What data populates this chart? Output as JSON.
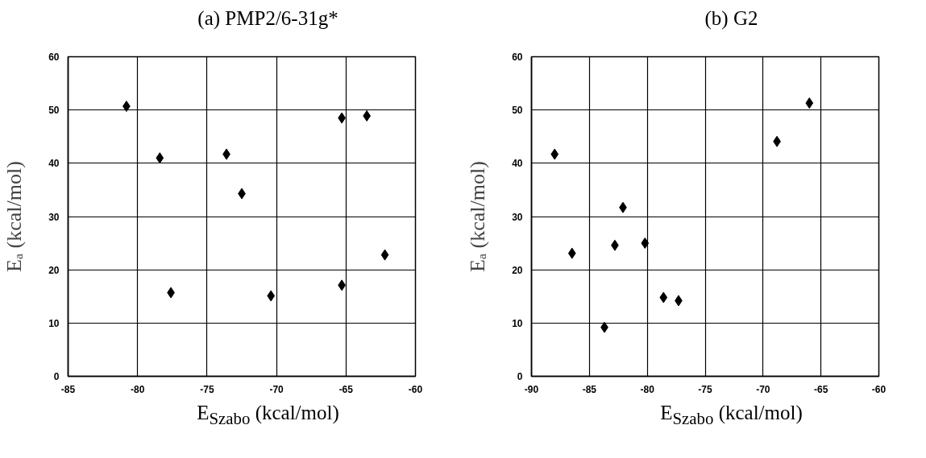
{
  "chart_data": [
    {
      "type": "scatter",
      "title": "(a) PMP2/6-31g*",
      "xlabel": "E$_{Szabo}$ (kcal/mol)",
      "ylabel": "Eₐ (kcal/mol)",
      "marker": "diamond",
      "color": "#000000",
      "grid": true,
      "x": [
        -80.8,
        -78.4,
        -77.6,
        -73.6,
        -72.5,
        -70.4,
        -65.3,
        -63.5,
        -65.3,
        -62.2
      ],
      "values": [
        50.7,
        41.0,
        15.7,
        41.7,
        34.3,
        15.1,
        48.5,
        48.9,
        17.1,
        22.8
      ],
      "xlim": [
        -85,
        -60
      ],
      "ylim": [
        0,
        60
      ],
      "xticks": [
        -85,
        -80,
        -75,
        -70,
        -65,
        -60
      ],
      "yticks": [
        0,
        10,
        20,
        30,
        40,
        50,
        60
      ]
    },
    {
      "type": "scatter",
      "title": "(b) G2",
      "xlabel": "E$_{Szabo}$ (kcal/mol)",
      "ylabel": "Eₐ (kcal/mol)",
      "marker": "diamond",
      "color": "#000000",
      "grid": true,
      "x": [
        -88.0,
        -86.5,
        -83.7,
        -82.8,
        -82.1,
        -80.2,
        -78.6,
        -77.3,
        -68.8,
        -66.0
      ],
      "values": [
        41.7,
        23.1,
        9.2,
        24.6,
        31.7,
        25.0,
        14.8,
        14.2,
        44.1,
        51.3
      ],
      "xlim": [
        -90,
        -60
      ],
      "ylim": [
        0,
        60
      ],
      "xticks": [
        -90,
        -85,
        -80,
        -75,
        -70,
        -65,
        -60
      ],
      "yticks": [
        0,
        10,
        20,
        30,
        40,
        50,
        60
      ]
    }
  ]
}
